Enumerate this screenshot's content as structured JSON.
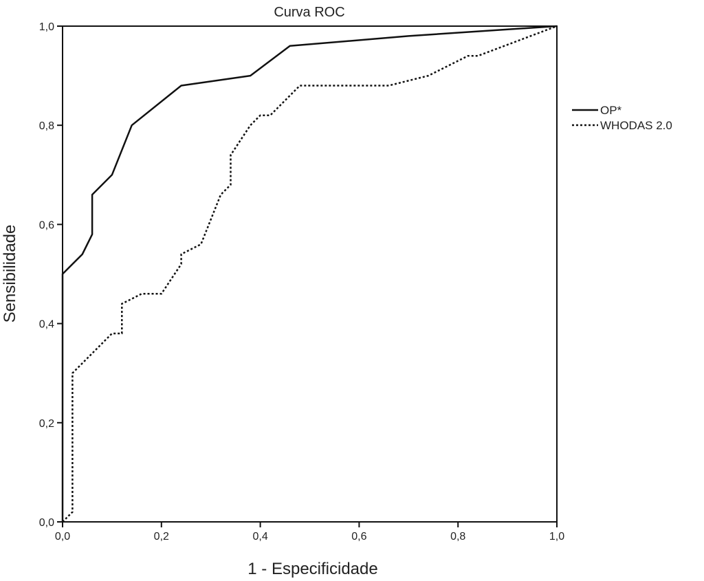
{
  "chart_data": {
    "type": "line",
    "title": "Curva ROC",
    "xlabel": "1 - Especificidade",
    "ylabel": "Sensibilidade",
    "xlim": [
      0,
      1
    ],
    "ylim": [
      0,
      1
    ],
    "xticks": [
      0,
      0.2,
      0.4,
      0.6,
      0.8,
      1.0
    ],
    "xtick_labels": [
      "0,0",
      "0,2",
      "0,4",
      "0,6",
      "0,8",
      "1,0"
    ],
    "yticks": [
      0,
      0.2,
      0.4,
      0.6,
      0.8,
      1.0
    ],
    "ytick_labels": [
      "0,0",
      "0,2",
      "0,4",
      "0,6",
      "0,8",
      "1,0"
    ],
    "grid": false,
    "legend_position": "right",
    "series": [
      {
        "name": "OP*",
        "style": "solid",
        "color": "#111111",
        "x": [
          0,
          0,
          0.04,
          0.06,
          0.06,
          0.1,
          0.14,
          0.24,
          0.38,
          0.46,
          0.7,
          1.0
        ],
        "y": [
          0,
          0.5,
          0.54,
          0.58,
          0.66,
          0.7,
          0.8,
          0.88,
          0.9,
          0.96,
          0.98,
          1.0
        ]
      },
      {
        "name": "WHODAS 2.0",
        "style": "dotted",
        "color": "#111111",
        "x": [
          0,
          0.02,
          0.02,
          0.04,
          0.1,
          0.12,
          0.12,
          0.14,
          0.16,
          0.2,
          0.24,
          0.24,
          0.28,
          0.32,
          0.34,
          0.34,
          0.38,
          0.4,
          0.42,
          0.48,
          0.66,
          0.74,
          0.82,
          0.84,
          1.0
        ],
        "y": [
          0,
          0.02,
          0.3,
          0.32,
          0.38,
          0.38,
          0.44,
          0.45,
          0.46,
          0.46,
          0.52,
          0.54,
          0.56,
          0.66,
          0.68,
          0.74,
          0.8,
          0.82,
          0.82,
          0.88,
          0.88,
          0.9,
          0.94,
          0.94,
          1.0
        ]
      }
    ]
  }
}
